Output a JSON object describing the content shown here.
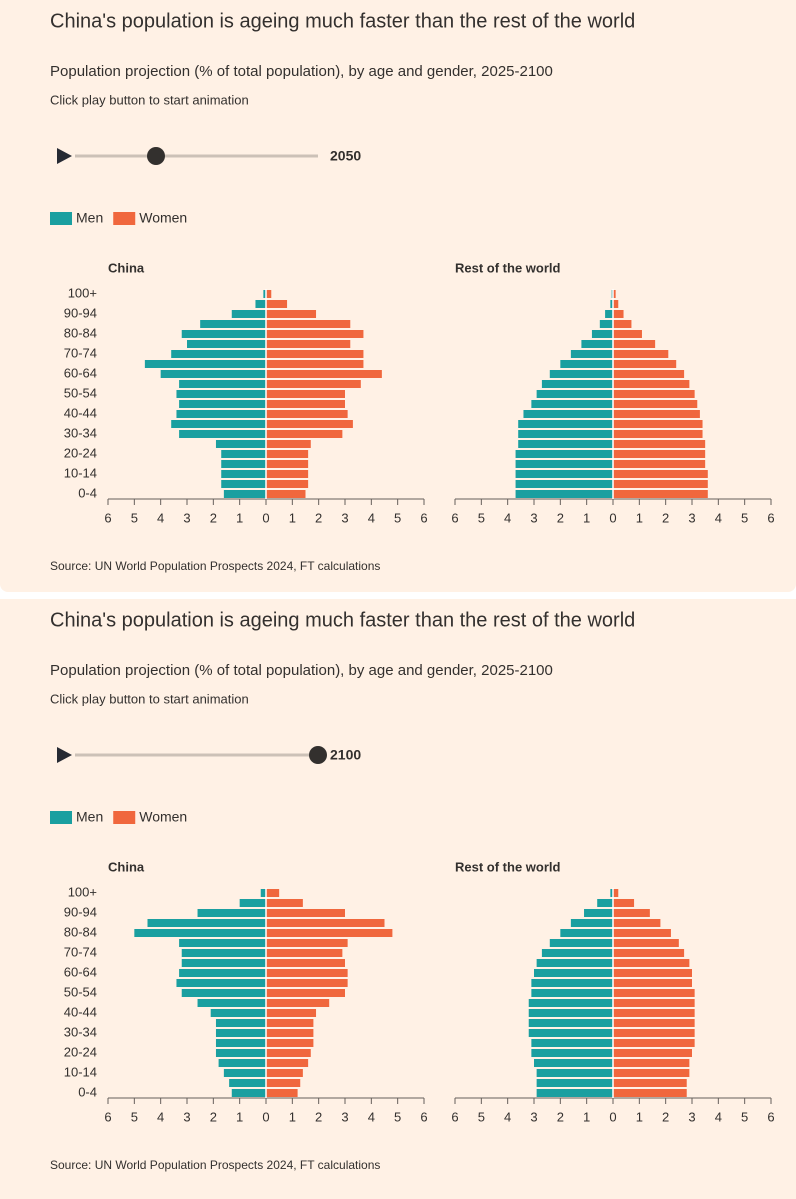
{
  "panels": [
    {
      "title": "China's population is ageing much faster than the rest of the world",
      "subtitle": "Population projection (% of total population), by age and gender, 2025-2100",
      "instruction": "Click play button to start animation",
      "slider": {
        "value": 2050,
        "range": [
          2025,
          2100
        ]
      },
      "source": "Source: UN World Population Prospects 2024, FT calculations"
    },
    {
      "title": "China's population is ageing much faster than the rest of the world",
      "subtitle": "Population projection (% of total population), by age and gender, 2025-2100",
      "instruction": "Click play button to start animation",
      "slider": {
        "value": 2100,
        "range": [
          2025,
          2100
        ]
      },
      "source": "Source: UN World Population Prospects 2024, FT calculations"
    }
  ],
  "chart_data": [
    {
      "type": "pyramid",
      "title": "China",
      "categories": [
        "0-4",
        null,
        "10-14",
        null,
        "20-24",
        null,
        "30-34",
        null,
        "40-44",
        null,
        "50-54",
        null,
        "60-64",
        null,
        "70-74",
        null,
        "80-84",
        null,
        "90-94",
        null,
        "100+"
      ],
      "series": [
        {
          "name": "Men",
          "color": "#1a9fa0",
          "values": [
            -1.6,
            -1.7,
            -1.7,
            -1.7,
            -1.7,
            -1.9,
            -3.3,
            -3.6,
            -3.4,
            -3.3,
            -3.4,
            -3.3,
            -4.0,
            -4.6,
            -3.6,
            -3.0,
            -3.2,
            -2.5,
            -1.3,
            -0.4,
            -0.1
          ]
        },
        {
          "name": "Women",
          "color": "#f0673d",
          "values": [
            1.5,
            1.6,
            1.6,
            1.6,
            1.6,
            1.7,
            2.9,
            3.3,
            3.1,
            3.0,
            3.0,
            3.6,
            4.4,
            3.7,
            3.7,
            3.2,
            3.7,
            3.2,
            1.9,
            0.8,
            0.2
          ]
        }
      ],
      "xlim": [
        -6,
        6
      ],
      "xticks": [
        {
          "value": -6,
          "label": "6"
        },
        {
          "value": -5,
          "label": "5"
        },
        {
          "value": -4,
          "label": "4"
        },
        {
          "value": -3,
          "label": "3"
        },
        {
          "value": -2,
          "label": "2"
        },
        {
          "value": -1,
          "label": "1"
        },
        0,
        1,
        2,
        3,
        4,
        5,
        6
      ]
    },
    {
      "type": "pyramid",
      "title": "Rest of the world",
      "series": [
        {
          "name": "Men",
          "color": "#1a9fa0",
          "values": [
            -3.7,
            -3.7,
            -3.7,
            -3.7,
            -3.7,
            -3.6,
            -3.6,
            -3.6,
            -3.4,
            -3.1,
            -2.9,
            -2.7,
            -2.4,
            -2.0,
            -1.6,
            -1.2,
            -0.8,
            -0.5,
            -0.3,
            -0.1,
            -0.05
          ]
        },
        {
          "name": "Women",
          "color": "#f0673d",
          "values": [
            3.6,
            3.6,
            3.6,
            3.5,
            3.5,
            3.5,
            3.4,
            3.4,
            3.3,
            3.2,
            3.1,
            2.9,
            2.7,
            2.4,
            2.1,
            1.6,
            1.1,
            0.7,
            0.4,
            0.2,
            0.1
          ]
        }
      ],
      "xlim": [
        -6,
        6
      ],
      "xticks": [
        {
          "value": -6,
          "label": "6"
        },
        {
          "value": -5,
          "label": "5"
        },
        {
          "value": -4,
          "label": "4"
        },
        {
          "value": -3,
          "label": "3"
        },
        {
          "value": -2,
          "label": "2"
        },
        {
          "value": -1,
          "label": "1"
        },
        0,
        1,
        2,
        3,
        4,
        5,
        6
      ]
    },
    {
      "type": "pyramid",
      "title": "China",
      "categories": [
        "0-4",
        null,
        "10-14",
        null,
        "20-24",
        null,
        "30-34",
        null,
        "40-44",
        null,
        "50-54",
        null,
        "60-64",
        null,
        "70-74",
        null,
        "80-84",
        null,
        "90-94",
        null,
        "100+"
      ],
      "series": [
        {
          "name": "Men",
          "color": "#1a9fa0",
          "values": [
            -1.3,
            -1.4,
            -1.6,
            -1.8,
            -1.9,
            -1.9,
            -1.9,
            -1.9,
            -2.1,
            -2.6,
            -3.2,
            -3.4,
            -3.3,
            -3.2,
            -3.2,
            -3.3,
            -5.0,
            -4.5,
            -2.6,
            -1.0,
            -0.2
          ]
        },
        {
          "name": "Women",
          "color": "#f0673d",
          "values": [
            1.2,
            1.3,
            1.4,
            1.6,
            1.7,
            1.8,
            1.8,
            1.8,
            1.9,
            2.4,
            3.0,
            3.1,
            3.1,
            3.0,
            2.9,
            3.1,
            4.8,
            4.5,
            3.0,
            1.4,
            0.5
          ]
        }
      ],
      "xlim": [
        -6,
        6
      ],
      "xticks": [
        {
          "value": -6,
          "label": "6"
        },
        {
          "value": -5,
          "label": "5"
        },
        {
          "value": -4,
          "label": "4"
        },
        {
          "value": -3,
          "label": "3"
        },
        {
          "value": -2,
          "label": "2"
        },
        {
          "value": -1,
          "label": "1"
        },
        0,
        1,
        2,
        3,
        4,
        5,
        6
      ]
    },
    {
      "type": "pyramid",
      "title": "Rest of the world",
      "series": [
        {
          "name": "Men",
          "color": "#1a9fa0",
          "values": [
            -2.9,
            -2.9,
            -2.9,
            -3.0,
            -3.1,
            -3.1,
            -3.2,
            -3.2,
            -3.2,
            -3.2,
            -3.1,
            -3.1,
            -3.0,
            -2.9,
            -2.7,
            -2.4,
            -2.0,
            -1.6,
            -1.1,
            -0.6,
            -0.1
          ]
        },
        {
          "name": "Women",
          "color": "#f0673d",
          "values": [
            2.8,
            2.8,
            2.9,
            2.9,
            3.0,
            3.1,
            3.1,
            3.1,
            3.1,
            3.1,
            3.1,
            3.0,
            3.0,
            2.9,
            2.7,
            2.5,
            2.2,
            1.8,
            1.4,
            0.8,
            0.2
          ]
        }
      ],
      "xlim": [
        -6,
        6
      ],
      "xticks": [
        {
          "value": -6,
          "label": "6"
        },
        {
          "value": -5,
          "label": "5"
        },
        {
          "value": -4,
          "label": "4"
        },
        {
          "value": -3,
          "label": "3"
        },
        {
          "value": -2,
          "label": "2"
        },
        {
          "value": -1,
          "label": "1"
        },
        0,
        1,
        2,
        3,
        4,
        5,
        6
      ]
    }
  ]
}
